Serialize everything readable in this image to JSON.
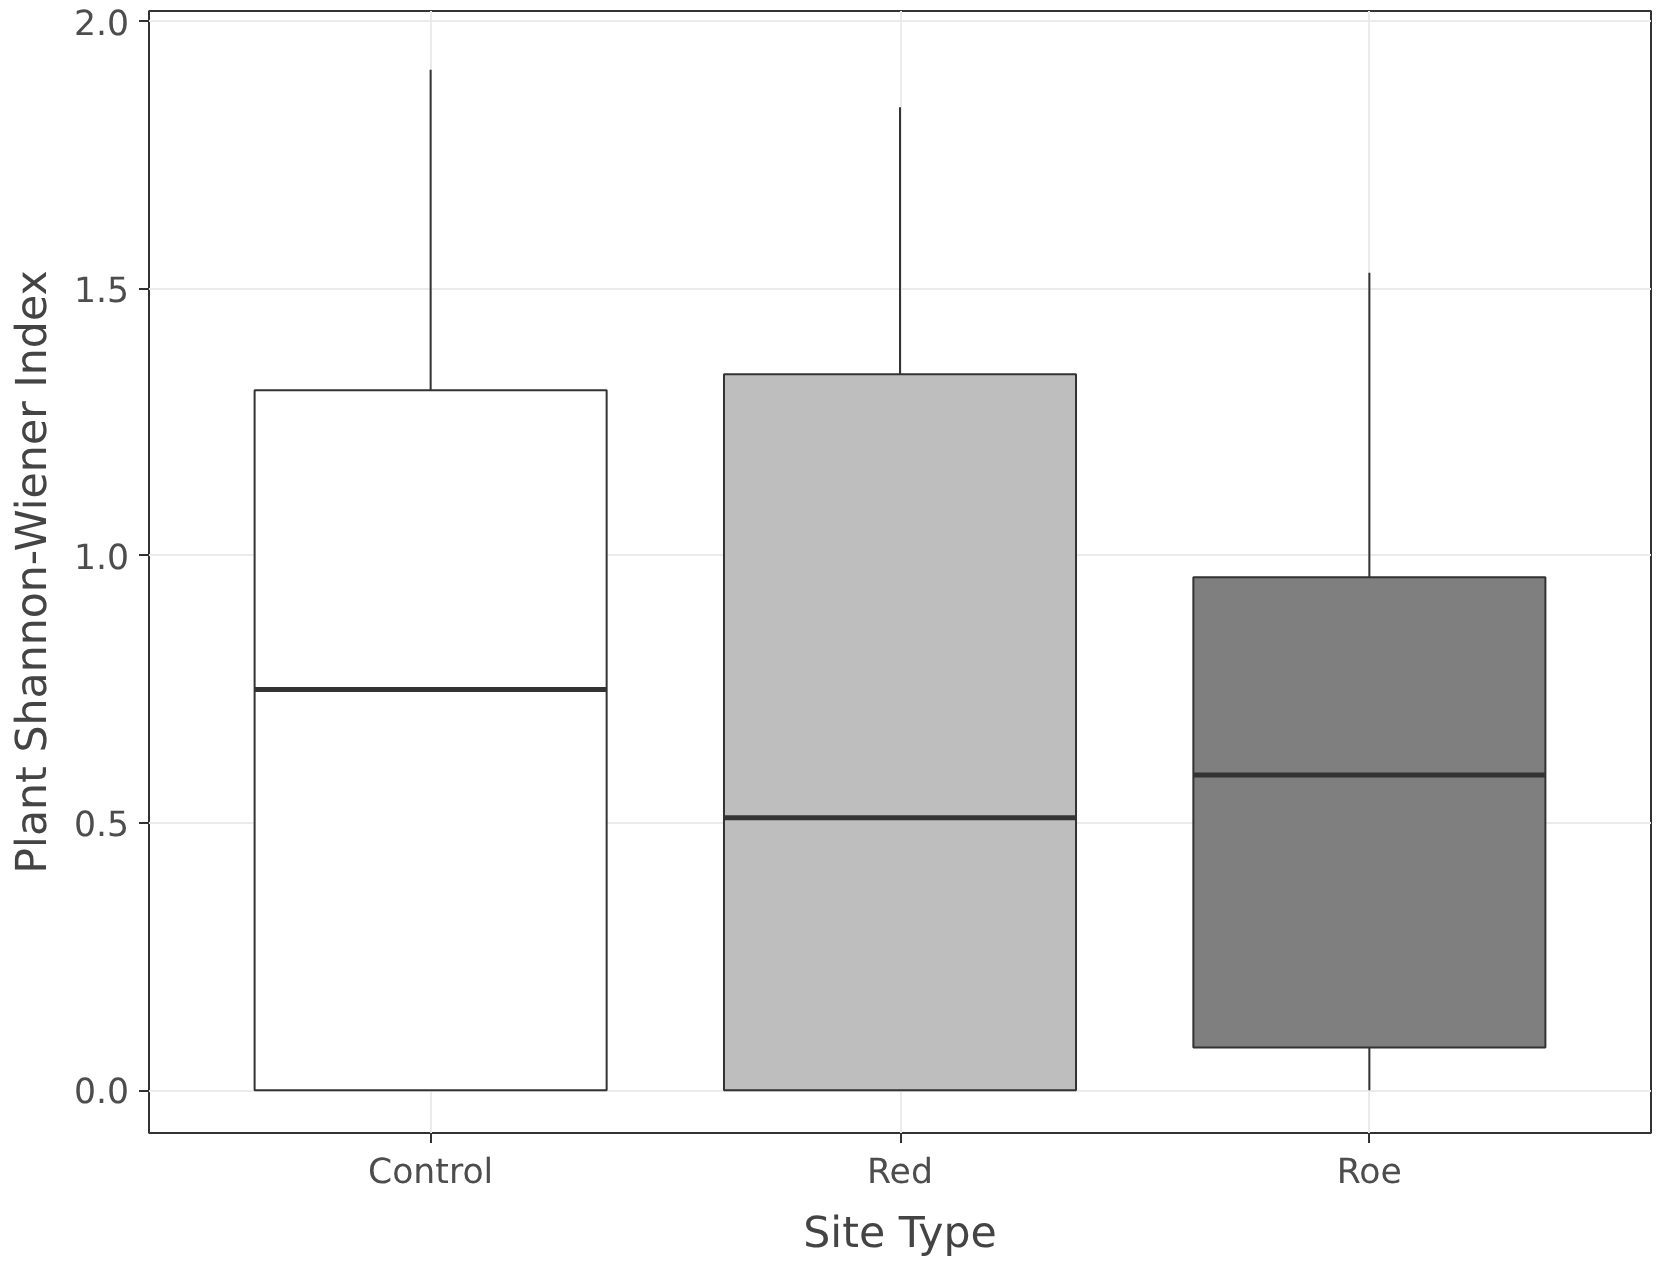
{
  "chart_data": {
    "type": "box",
    "xlabel": "Site Type",
    "ylabel": "Plant Shannon-Wiener Index",
    "categories": [
      "Control",
      "Red",
      "Roe"
    ],
    "colors": [
      "#ffffff",
      "#bebebe",
      "#7f7f7f"
    ],
    "boxes": [
      {
        "low": 0.0,
        "q1": 0.0,
        "median": 0.75,
        "q3": 1.31,
        "high": 1.91
      },
      {
        "low": 0.0,
        "q1": 0.0,
        "median": 0.51,
        "q3": 1.34,
        "high": 1.84
      },
      {
        "low": 0.0,
        "q1": 0.08,
        "median": 0.59,
        "q3": 0.96,
        "high": 1.53
      }
    ],
    "ylim": [
      -0.08,
      2.02
    ],
    "yticks": [
      {
        "value": 0,
        "label": "0.0"
      },
      {
        "value": 0.5,
        "label": "0.5"
      },
      {
        "value": 1,
        "label": "1.0"
      },
      {
        "value": 1.5,
        "label": "1.5"
      },
      {
        "value": 2,
        "label": "2.0"
      }
    ],
    "grid": true
  }
}
